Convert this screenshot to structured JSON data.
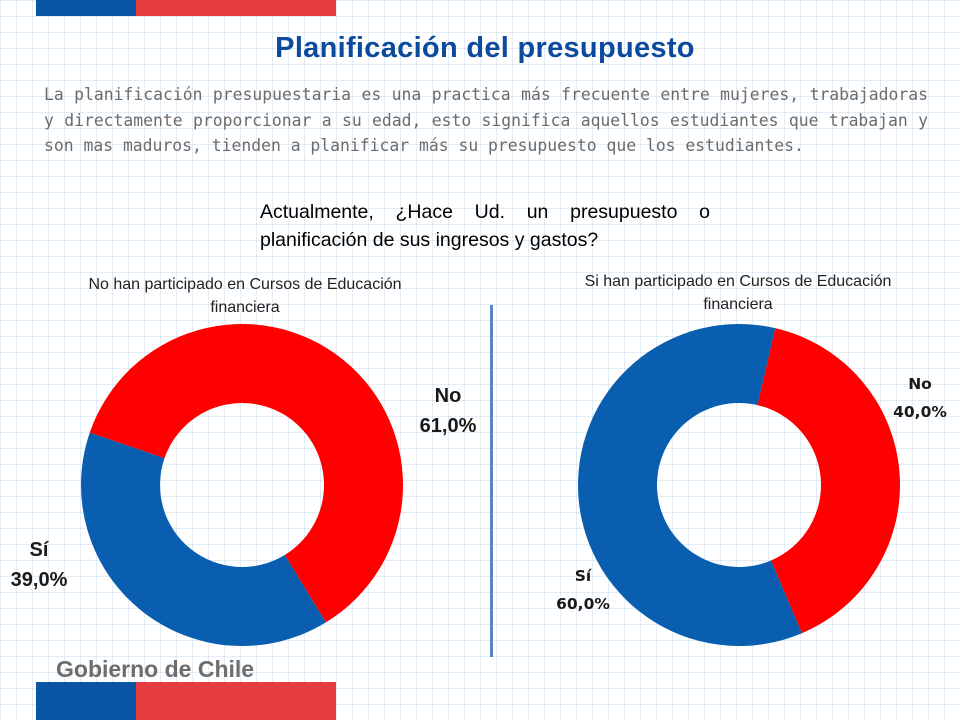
{
  "title": "Planificación del presupuesto",
  "intro": "La planificación presupuestaria es una practica más frecuente entre  mujeres, trabajadoras y directamente proporcionar a su edad, esto significa aquellos estudiantes que trabajan y son mas maduros, tienden a planificar más su presupuesto que los estudiantes.",
  "question": "Actualmente, ¿Hace Ud. un presupuesto o planificación de sus ingresos y gastos?",
  "footer": {
    "logo_text": "Gobierno de Chile"
  },
  "colors": {
    "si": "#0a5eb0",
    "no": "#fe0000",
    "title": "#0b4a9c",
    "flag_blue": "#0a56a5",
    "flag_red": "#e63b3f"
  },
  "chart_data": [
    {
      "type": "pie",
      "subtitle": "No han participado en Cursos de Educación financiera",
      "slices": [
        {
          "name": "No",
          "value": 61.0,
          "label": "61,0%",
          "color": "#fe0000"
        },
        {
          "name": "Sí",
          "value": 39.0,
          "label": "39,0%",
          "color": "#0a5eb0"
        }
      ]
    },
    {
      "type": "pie",
      "subtitle": "Si han participado en Cursos de Educación financiera",
      "slices": [
        {
          "name": "No",
          "value": 40.0,
          "label": "40,0%",
          "color": "#fe0000"
        },
        {
          "name": "Sí",
          "value": 60.0,
          "label": "60,0%",
          "color": "#0a5eb0"
        }
      ]
    }
  ]
}
